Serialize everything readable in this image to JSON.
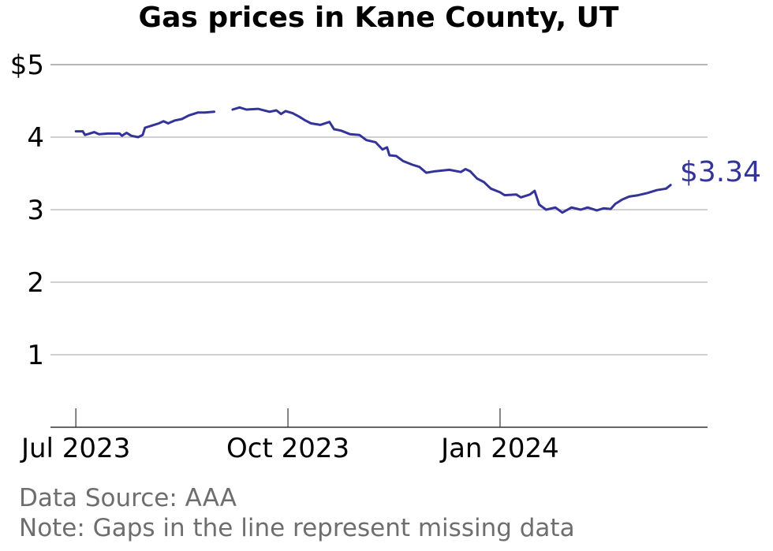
{
  "chart_data": {
    "type": "line",
    "title": "Gas prices in Kane County, UT",
    "xlabel": "",
    "ylabel": "",
    "ylim": [
      0,
      5
    ],
    "yticks": [
      {
        "value": 1,
        "label": "1"
      },
      {
        "value": 2,
        "label": "2"
      },
      {
        "value": 3,
        "label": "3"
      },
      {
        "value": 4,
        "label": "4"
      },
      {
        "value": 5,
        "label": "$5"
      }
    ],
    "xticks": [
      {
        "date": "2023-07-01",
        "label": "Jul 2023"
      },
      {
        "date": "2023-10-01",
        "label": "Oct 2023"
      },
      {
        "date": "2024-01-01",
        "label": "Jan 2024"
      }
    ],
    "xlim": [
      "2023-06-20",
      "2024-03-31"
    ],
    "grid": "horizontal",
    "line_color": "#33339a",
    "end_label": "$3.34",
    "series": [
      {
        "segments": [
          [
            [
              "2023-07-01",
              4.08
            ],
            [
              "2023-07-04",
              4.08
            ],
            [
              "2023-07-05",
              4.03
            ],
            [
              "2023-07-07",
              4.05
            ],
            [
              "2023-07-09",
              4.07
            ],
            [
              "2023-07-11",
              4.04
            ],
            [
              "2023-07-15",
              4.05
            ],
            [
              "2023-07-20",
              4.05
            ],
            [
              "2023-07-21",
              4.02
            ],
            [
              "2023-07-23",
              4.06
            ],
            [
              "2023-07-25",
              4.02
            ],
            [
              "2023-07-28",
              4.0
            ],
            [
              "2023-07-30",
              4.03
            ],
            [
              "2023-07-31",
              4.13
            ],
            [
              "2023-08-03",
              4.16
            ],
            [
              "2023-08-06",
              4.19
            ],
            [
              "2023-08-08",
              4.22
            ],
            [
              "2023-08-10",
              4.19
            ],
            [
              "2023-08-13",
              4.23
            ],
            [
              "2023-08-16",
              4.25
            ],
            [
              "2023-08-19",
              4.3
            ],
            [
              "2023-08-23",
              4.34
            ],
            [
              "2023-08-26",
              4.34
            ],
            [
              "2023-08-30",
              4.35
            ]
          ],
          [
            [
              "2023-09-07",
              4.38
            ],
            [
              "2023-09-10",
              4.41
            ],
            [
              "2023-09-13",
              4.38
            ],
            [
              "2023-09-18",
              4.39
            ],
            [
              "2023-09-23",
              4.35
            ],
            [
              "2023-09-26",
              4.37
            ],
            [
              "2023-09-28",
              4.32
            ],
            [
              "2023-09-30",
              4.36
            ],
            [
              "2023-10-03",
              4.33
            ],
            [
              "2023-10-06",
              4.28
            ],
            [
              "2023-10-08",
              4.24
            ],
            [
              "2023-10-11",
              4.19
            ],
            [
              "2023-10-15",
              4.17
            ],
            [
              "2023-10-19",
              4.21
            ],
            [
              "2023-10-21",
              4.11
            ],
            [
              "2023-10-24",
              4.09
            ],
            [
              "2023-10-28",
              4.04
            ],
            [
              "2023-11-01",
              4.03
            ],
            [
              "2023-11-04",
              3.96
            ],
            [
              "2023-11-08",
              3.93
            ],
            [
              "2023-11-11",
              3.83
            ],
            [
              "2023-11-13",
              3.86
            ],
            [
              "2023-11-14",
              3.75
            ],
            [
              "2023-11-17",
              3.74
            ],
            [
              "2023-11-20",
              3.67
            ],
            [
              "2023-11-24",
              3.62
            ],
            [
              "2023-11-27",
              3.59
            ],
            [
              "2023-11-30",
              3.51
            ],
            [
              "2023-12-04",
              3.53
            ],
            [
              "2023-12-10",
              3.55
            ],
            [
              "2023-12-15",
              3.52
            ],
            [
              "2023-12-17",
              3.56
            ],
            [
              "2023-12-19",
              3.53
            ],
            [
              "2023-12-22",
              3.43
            ],
            [
              "2023-12-25",
              3.38
            ],
            [
              "2023-12-28",
              3.29
            ],
            [
              "2024-01-01",
              3.24
            ],
            [
              "2024-01-03",
              3.2
            ],
            [
              "2024-01-08",
              3.21
            ],
            [
              "2024-01-10",
              3.17
            ],
            [
              "2024-01-14",
              3.21
            ],
            [
              "2024-01-16",
              3.26
            ],
            [
              "2024-01-18",
              3.07
            ],
            [
              "2024-01-21",
              3.0
            ],
            [
              "2024-01-25",
              3.03
            ],
            [
              "2024-01-28",
              2.96
            ],
            [
              "2024-02-01",
              3.03
            ],
            [
              "2024-02-05",
              3.0
            ],
            [
              "2024-02-08",
              3.03
            ],
            [
              "2024-02-12",
              2.99
            ],
            [
              "2024-02-15",
              3.02
            ],
            [
              "2024-02-18",
              3.01
            ],
            [
              "2024-02-20",
              3.08
            ],
            [
              "2024-02-23",
              3.14
            ],
            [
              "2024-02-26",
              3.18
            ],
            [
              "2024-03-01",
              3.2
            ],
            [
              "2024-03-05",
              3.23
            ],
            [
              "2024-03-09",
              3.27
            ],
            [
              "2024-03-13",
              3.29
            ],
            [
              "2024-03-15",
              3.34
            ]
          ]
        ]
      }
    ]
  },
  "footer": {
    "source": "Data Source: AAA",
    "note": "Note: Gaps in the line represent missing data"
  }
}
